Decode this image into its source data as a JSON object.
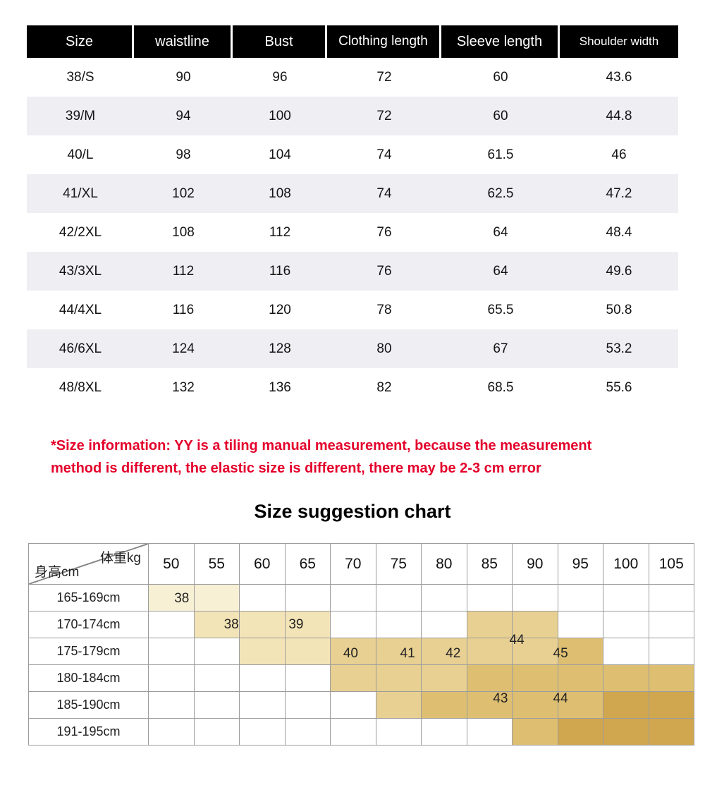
{
  "size_table": {
    "headers": [
      "Size",
      "waistline",
      "Bust",
      "Clothing length",
      "Sleeve length",
      "Shoulder width"
    ],
    "rows": [
      [
        "38/S",
        "90",
        "96",
        "72",
        "60",
        "43.6"
      ],
      [
        "39/M",
        "94",
        "100",
        "72",
        "60",
        "44.8"
      ],
      [
        "40/L",
        "98",
        "104",
        "74",
        "61.5",
        "46"
      ],
      [
        "41/XL",
        "102",
        "108",
        "74",
        "62.5",
        "47.2"
      ],
      [
        "42/2XL",
        "108",
        "112",
        "76",
        "64",
        "48.4"
      ],
      [
        "43/3XL",
        "112",
        "116",
        "76",
        "64",
        "49.6"
      ],
      [
        "44/4XL",
        "116",
        "120",
        "78",
        "65.5",
        "50.8"
      ],
      [
        "46/6XL",
        "124",
        "128",
        "80",
        "67",
        "53.2"
      ],
      [
        "48/8XL",
        "132",
        "136",
        "82",
        "68.5",
        "55.6"
      ]
    ]
  },
  "note": {
    "line1": "*Size information: YY is a tiling manual measurement, because the measurement",
    "line2": "method is different, the elastic size is different, there may be 2-3 cm error"
  },
  "suggestion": {
    "title": "Size suggestion chart",
    "corner_top": "体重kg",
    "corner_bottom": "身高cm",
    "weights": [
      "50",
      "55",
      "60",
      "65",
      "70",
      "75",
      "80",
      "85",
      "90",
      "95",
      "100",
      "105"
    ],
    "heights": [
      "165-169cm",
      "170-174cm",
      "175-179cm",
      "180-184cm",
      "185-190cm",
      "191-195cm"
    ],
    "level_colors": [
      "#ffffff",
      "#f8f0d5",
      "#f3e4b8",
      "#e8d092",
      "#debf72",
      "#d0a74e"
    ],
    "cell_levels": [
      [
        1,
        1,
        0,
        0,
        0,
        0,
        0,
        0,
        0,
        0,
        0,
        0
      ],
      [
        0,
        2,
        2,
        2,
        0,
        0,
        0,
        3,
        3,
        0,
        0,
        0
      ],
      [
        0,
        0,
        2,
        2,
        3,
        3,
        3,
        3,
        3,
        4,
        0,
        0
      ],
      [
        0,
        0,
        0,
        0,
        3,
        3,
        3,
        4,
        4,
        4,
        4,
        4
      ],
      [
        0,
        0,
        0,
        0,
        0,
        3,
        4,
        4,
        4,
        4,
        5,
        5
      ],
      [
        0,
        0,
        0,
        0,
        0,
        0,
        0,
        0,
        4,
        5,
        5,
        5
      ]
    ],
    "labels": [
      {
        "text": "38",
        "col": 0.74,
        "row": 0.55
      },
      {
        "text": "38",
        "col": 1.83,
        "row": 1.53
      },
      {
        "text": "39",
        "col": 3.25,
        "row": 1.53
      },
      {
        "text": "40",
        "col": 4.45,
        "row": 2.6
      },
      {
        "text": "41",
        "col": 5.7,
        "row": 2.6
      },
      {
        "text": "42",
        "col": 6.7,
        "row": 2.6
      },
      {
        "text": "44",
        "col": 8.1,
        "row": 2.1
      },
      {
        "text": "45",
        "col": 9.06,
        "row": 2.6
      },
      {
        "text": "43",
        "col": 7.74,
        "row": 4.3
      },
      {
        "text": "44",
        "col": 9.06,
        "row": 4.3
      }
    ]
  },
  "chart_data": [
    {
      "type": "table",
      "title": "Garment measurements (cm)",
      "columns": [
        "Size",
        "waistline",
        "Bust",
        "Clothing length",
        "Sleeve length",
        "Shoulder width"
      ],
      "rows": [
        [
          "38/S",
          90,
          96,
          72,
          60,
          43.6
        ],
        [
          "39/M",
          94,
          100,
          72,
          60,
          44.8
        ],
        [
          "40/L",
          98,
          104,
          74,
          61.5,
          46
        ],
        [
          "41/XL",
          102,
          108,
          74,
          62.5,
          47.2
        ],
        [
          "42/2XL",
          108,
          112,
          76,
          64,
          48.4
        ],
        [
          "43/3XL",
          112,
          116,
          76,
          64,
          49.6
        ],
        [
          "44/4XL",
          116,
          120,
          78,
          65.5,
          50.8
        ],
        [
          "46/6XL",
          124,
          128,
          80,
          67,
          53.2
        ],
        [
          "48/8XL",
          132,
          136,
          82,
          68.5,
          55.6
        ]
      ]
    },
    {
      "type": "heatmap",
      "title": "Size suggestion chart",
      "xlabel": "体重kg",
      "ylabel": "身高cm",
      "x": [
        50,
        55,
        60,
        65,
        70,
        75,
        80,
        85,
        90,
        95,
        100,
        105
      ],
      "y": [
        "165-169cm",
        "170-174cm",
        "175-179cm",
        "180-184cm",
        "185-190cm",
        "191-195cm"
      ],
      "annotations": [
        {
          "size": "38",
          "height": "165-169cm",
          "weight": "50-55"
        },
        {
          "size": "38",
          "height": "170-174cm",
          "weight": "55-60"
        },
        {
          "size": "39",
          "height": "170-174cm",
          "weight": "60-65"
        },
        {
          "size": "40",
          "height": "175-179cm",
          "weight": "70"
        },
        {
          "size": "41",
          "height": "175-179cm",
          "weight": "75"
        },
        {
          "size": "42",
          "height": "175-179cm",
          "weight": "80"
        },
        {
          "size": "44",
          "height": "170-179cm",
          "weight": "90"
        },
        {
          "size": "45",
          "height": "175-179cm",
          "weight": "95"
        },
        {
          "size": "43",
          "height": "185-190cm",
          "weight": "90"
        },
        {
          "size": "44",
          "height": "185-190cm",
          "weight": "95"
        }
      ]
    }
  ]
}
